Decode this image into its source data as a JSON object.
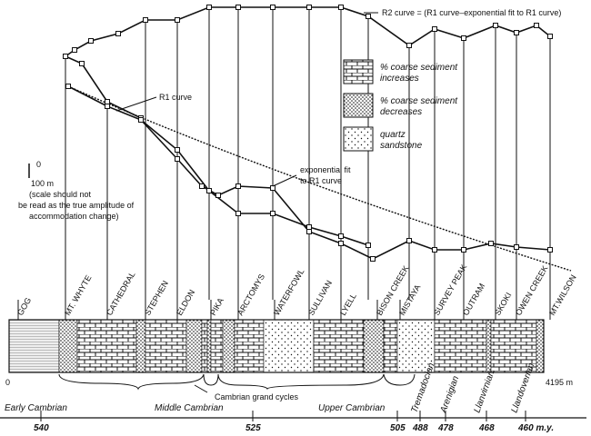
{
  "annotations": {
    "r2_curve": "R2 curve = (R1 curve–exponential fit to R1 curve)",
    "r1_curve": "R1 curve",
    "exp_fit": [
      "exponential fit",
      "to R1 curve"
    ]
  },
  "scale": {
    "zero": "0",
    "hundred": "100 m",
    "note": [
      "(scale should not",
      "be read as the true amplitude of",
      "accommodation change)"
    ]
  },
  "legend": [
    {
      "label": [
        "% coarse sediment",
        "increases"
      ]
    },
    {
      "label": [
        "% coarse sediment",
        "decreases"
      ]
    },
    {
      "label": [
        "quartz",
        "sandstone"
      ]
    }
  ],
  "formations": [
    "GOG",
    "MT. WHYTE",
    "CATHEDRAL",
    "STEPHEN",
    "ELDON",
    "PIKA",
    "ARCTOMYS",
    "WATERFOWL",
    "SULLIVAN",
    "LYELL",
    "BISON CREEK",
    "MISTAYA",
    "SURVEY PEAK",
    "OUTRAM",
    "SKOKI",
    "OWEN CREEK",
    "MT.WILSON"
  ],
  "section": {
    "start": "0",
    "end": "4195 m"
  },
  "cycles_label": "Cambrian grand cycles",
  "periods": [
    "Early Cambrian",
    "Middle Cambrian",
    "Upper Cambrian",
    "Tremadocian",
    "Arenigian",
    "Llanvirnian",
    "Llandoverian"
  ],
  "ages": [
    "540",
    "525",
    "505",
    "488",
    "478",
    "468",
    "460 m.y."
  ]
}
